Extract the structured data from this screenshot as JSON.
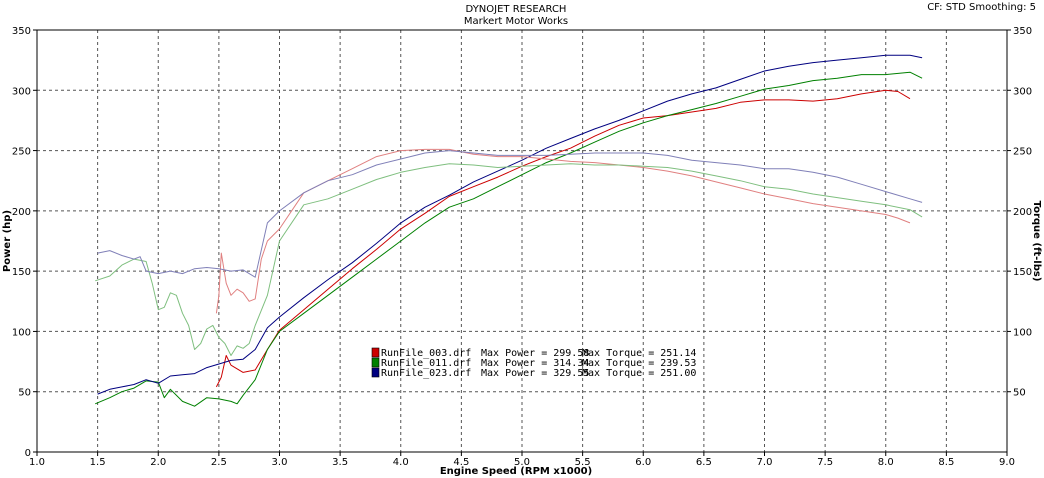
{
  "header": {
    "title": "DYNOJET RESEARCH",
    "subtitle": "Markert Motor Works",
    "settings": "CF: STD  Smoothing: 5"
  },
  "chart_data": {
    "type": "line",
    "xlabel": "Engine Speed (RPM x1000)",
    "ylabel": "Power (hp)",
    "y2label": "Torque (ft-lbs)",
    "xlim": [
      1.0,
      9.0
    ],
    "ylim": [
      0,
      350
    ],
    "y2lim": [
      0,
      350
    ],
    "xticks": [
      "1.0",
      "1.5",
      "2.0",
      "2.5",
      "3.0",
      "3.5",
      "4.0",
      "4.5",
      "5.0",
      "5.5",
      "6.0",
      "6.5",
      "7.0",
      "7.5",
      "8.0",
      "8.5",
      "9.0"
    ],
    "yticks": [
      "0",
      "50",
      "100",
      "150",
      "200",
      "250",
      "300",
      "350"
    ],
    "y2ticks": [
      "50",
      "100",
      "150",
      "200",
      "250",
      "300",
      "350"
    ],
    "grid": true,
    "legend_position": "center-bottom",
    "legend": [
      {
        "file": "RunFile_003.drf",
        "power_text": "Max Power = 299.58",
        "torque_text": "Max Torque = 251.14",
        "color": "#cc0000"
      },
      {
        "file": "RunFile_011.drf",
        "power_text": "Max Power = 314.34",
        "torque_text": "Max Torque = 239.53",
        "color": "#008000"
      },
      {
        "file": "RunFile_023.drf",
        "power_text": "Max Power = 329.55",
        "torque_text": "Max Torque = 251.00",
        "color": "#000080"
      }
    ],
    "series": [
      {
        "name": "RunFile_003.drf Power",
        "color": "#cc0000",
        "kind": "power",
        "x": [
          2.48,
          2.52,
          2.56,
          2.6,
          2.7,
          2.8,
          2.9,
          3.0,
          3.2,
          3.4,
          3.6,
          3.8,
          4.0,
          4.2,
          4.4,
          4.6,
          4.8,
          5.0,
          5.2,
          5.4,
          5.6,
          5.8,
          6.0,
          6.2,
          6.4,
          6.6,
          6.8,
          7.0,
          7.2,
          7.4,
          7.6,
          7.8,
          8.0,
          8.1,
          8.2
        ],
        "y": [
          54,
          62,
          80,
          72,
          66,
          68,
          85,
          101,
          118,
          135,
          152,
          168,
          185,
          198,
          212,
          220,
          228,
          237,
          245,
          252,
          262,
          271,
          277,
          279,
          282,
          285,
          290,
          292,
          292,
          291,
          293,
          297,
          300,
          299,
          293
        ]
      },
      {
        "name": "RunFile_011.drf Power",
        "color": "#008000",
        "kind": "power",
        "x": [
          1.48,
          1.6,
          1.7,
          1.8,
          1.9,
          2.0,
          2.05,
          2.1,
          2.2,
          2.3,
          2.4,
          2.5,
          2.6,
          2.65,
          2.7,
          2.8,
          2.9,
          3.0,
          3.2,
          3.4,
          3.6,
          3.8,
          4.0,
          4.2,
          4.4,
          4.6,
          4.8,
          5.0,
          5.2,
          5.4,
          5.6,
          5.8,
          6.0,
          6.2,
          6.4,
          6.6,
          6.8,
          7.0,
          7.2,
          7.4,
          7.6,
          7.8,
          8.0,
          8.2,
          8.3
        ],
        "y": [
          40,
          45,
          50,
          53,
          59,
          58,
          45,
          52,
          42,
          38,
          45,
          44,
          42,
          40,
          47,
          60,
          85,
          100,
          115,
          130,
          145,
          160,
          175,
          190,
          203,
          210,
          220,
          230,
          240,
          248,
          257,
          266,
          273,
          279,
          284,
          289,
          295,
          301,
          304,
          308,
          310,
          313,
          313,
          315,
          310
        ]
      },
      {
        "name": "RunFile_023.drf Power",
        "color": "#000080",
        "kind": "power",
        "x": [
          1.5,
          1.6,
          1.7,
          1.8,
          1.9,
          2.0,
          2.1,
          2.2,
          2.3,
          2.4,
          2.5,
          2.6,
          2.7,
          2.8,
          2.9,
          3.0,
          3.2,
          3.4,
          3.6,
          3.8,
          4.0,
          4.2,
          4.4,
          4.6,
          4.8,
          5.0,
          5.2,
          5.4,
          5.6,
          5.8,
          6.0,
          6.2,
          6.4,
          6.6,
          6.8,
          7.0,
          7.2,
          7.4,
          7.6,
          7.8,
          8.0,
          8.2,
          8.3
        ],
        "y": [
          48,
          52,
          54,
          56,
          60,
          57,
          63,
          64,
          65,
          70,
          73,
          76,
          77,
          85,
          103,
          112,
          128,
          143,
          157,
          173,
          190,
          203,
          213,
          224,
          233,
          242,
          252,
          260,
          268,
          275,
          283,
          291,
          297,
          302,
          309,
          316,
          320,
          323,
          325,
          327,
          329,
          329,
          327
        ]
      },
      {
        "name": "RunFile_003.drf Torque",
        "color": "#e08080",
        "kind": "torque",
        "x": [
          2.48,
          2.5,
          2.52,
          2.56,
          2.6,
          2.65,
          2.7,
          2.75,
          2.8,
          2.85,
          2.9,
          3.0,
          3.2,
          3.4,
          3.6,
          3.8,
          4.0,
          4.2,
          4.4,
          4.6,
          4.8,
          5.0,
          5.2,
          5.4,
          5.6,
          5.8,
          6.0,
          6.2,
          6.4,
          6.6,
          6.8,
          7.0,
          7.2,
          7.4,
          7.6,
          7.8,
          8.0,
          8.1,
          8.2
        ],
        "y": [
          115,
          130,
          165,
          140,
          130,
          135,
          132,
          125,
          127,
          160,
          175,
          185,
          215,
          225,
          235,
          245,
          250,
          251,
          251,
          247,
          245,
          245,
          243,
          241,
          240,
          238,
          236,
          233,
          229,
          224,
          219,
          214,
          210,
          206,
          203,
          200,
          197,
          194,
          190
        ]
      },
      {
        "name": "RunFile_011.drf Torque",
        "color": "#7fbf7f",
        "kind": "torque",
        "x": [
          1.48,
          1.6,
          1.7,
          1.8,
          1.9,
          1.95,
          2.0,
          2.05,
          2.1,
          2.15,
          2.2,
          2.25,
          2.3,
          2.35,
          2.4,
          2.45,
          2.5,
          2.55,
          2.6,
          2.65,
          2.7,
          2.75,
          2.8,
          2.9,
          3.0,
          3.2,
          3.4,
          3.6,
          3.8,
          4.0,
          4.2,
          4.4,
          4.6,
          4.8,
          5.0,
          5.2,
          5.4,
          5.6,
          5.8,
          6.0,
          6.2,
          6.4,
          6.6,
          6.8,
          7.0,
          7.2,
          7.4,
          7.6,
          7.8,
          8.0,
          8.2,
          8.3
        ],
        "y": [
          142,
          146,
          155,
          160,
          158,
          140,
          118,
          120,
          132,
          130,
          115,
          105,
          85,
          90,
          102,
          105,
          95,
          90,
          80,
          88,
          86,
          90,
          105,
          130,
          175,
          205,
          210,
          218,
          226,
          232,
          236,
          239,
          238,
          236,
          237,
          238,
          239,
          238,
          238,
          237,
          236,
          233,
          229,
          225,
          220,
          218,
          214,
          211,
          208,
          205,
          201,
          195
        ]
      },
      {
        "name": "RunFile_023.drf Torque",
        "color": "#8080b8",
        "kind": "torque",
        "x": [
          1.5,
          1.6,
          1.7,
          1.8,
          1.85,
          1.9,
          2.0,
          2.1,
          2.2,
          2.3,
          2.4,
          2.5,
          2.6,
          2.7,
          2.8,
          2.9,
          3.0,
          3.2,
          3.4,
          3.6,
          3.8,
          4.0,
          4.2,
          4.4,
          4.6,
          4.8,
          5.0,
          5.2,
          5.4,
          5.6,
          5.8,
          6.0,
          6.2,
          6.4,
          6.6,
          6.8,
          7.0,
          7.2,
          7.4,
          7.6,
          7.8,
          8.0,
          8.2,
          8.3
        ],
        "y": [
          165,
          167,
          163,
          160,
          162,
          150,
          148,
          150,
          148,
          152,
          153,
          152,
          150,
          151,
          145,
          190,
          200,
          215,
          225,
          230,
          238,
          243,
          248,
          250,
          248,
          246,
          246,
          246,
          247,
          248,
          248,
          248,
          246,
          242,
          240,
          238,
          235,
          235,
          232,
          228,
          222,
          216,
          210,
          207
        ]
      }
    ]
  }
}
